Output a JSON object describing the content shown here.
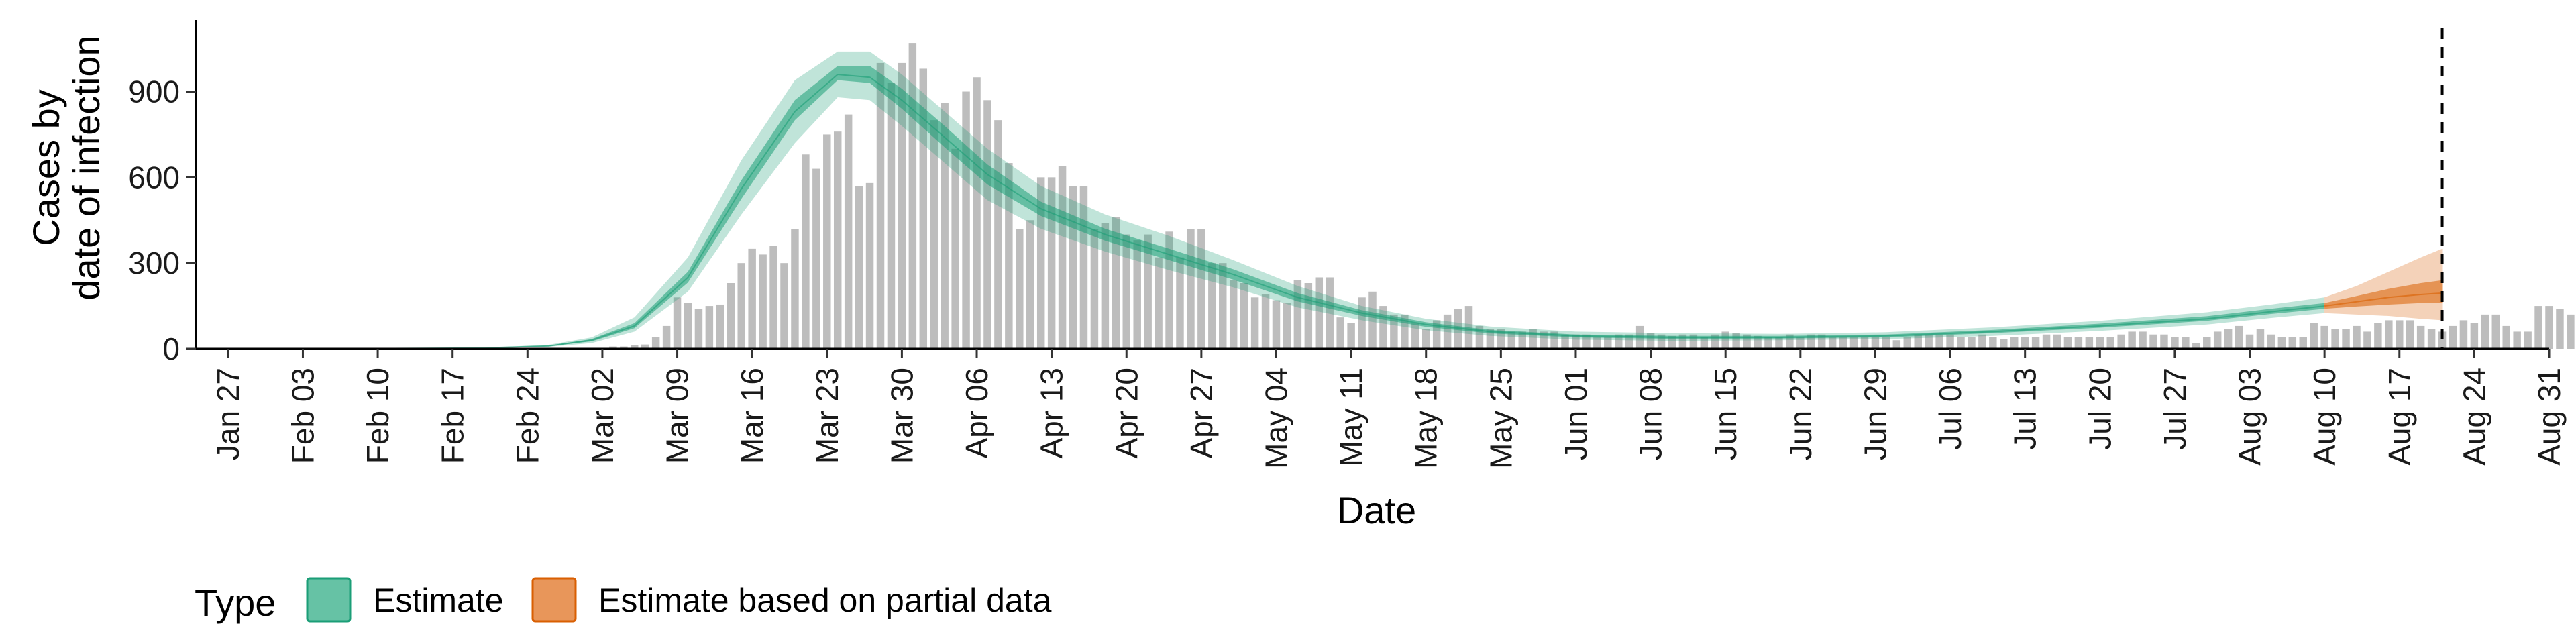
{
  "chart_data": {
    "type": "bar+area",
    "title": "",
    "xlabel": "Date",
    "ylabel_lines": [
      "Cases by",
      "date of infection"
    ],
    "ylim": [
      0,
      1150
    ],
    "yticks": [
      0,
      300,
      600,
      900
    ],
    "ytick_labels": [
      "0",
      "300",
      "600",
      "900"
    ],
    "xlim": [
      "2020-01-24",
      "2020-08-31"
    ],
    "xticks": [
      "2020-01-27",
      "2020-02-03",
      "2020-02-10",
      "2020-02-17",
      "2020-02-24",
      "2020-03-02",
      "2020-03-09",
      "2020-03-16",
      "2020-03-23",
      "2020-03-30",
      "2020-04-06",
      "2020-04-13",
      "2020-04-20",
      "2020-04-27",
      "2020-05-04",
      "2020-05-11",
      "2020-05-18",
      "2020-05-25",
      "2020-06-01",
      "2020-06-08",
      "2020-06-15",
      "2020-06-22",
      "2020-06-29",
      "2020-07-06",
      "2020-07-13",
      "2020-07-20",
      "2020-07-27",
      "2020-08-03",
      "2020-08-10",
      "2020-08-17",
      "2020-08-24",
      "2020-08-31"
    ],
    "xtick_labels": [
      "Jan 27",
      "Feb 03",
      "Feb 10",
      "Feb 17",
      "Feb 24",
      "Mar 02",
      "Mar 09",
      "Mar 16",
      "Mar 23",
      "Mar 30",
      "Apr 06",
      "Apr 13",
      "Apr 20",
      "Apr 27",
      "May 04",
      "May 11",
      "May 18",
      "May 25",
      "Jun 01",
      "Jun 08",
      "Jun 15",
      "Jun 22",
      "Jun 29",
      "Jul 06",
      "Jul 13",
      "Jul 20",
      "Jul 27",
      "Aug 03",
      "Aug 10",
      "Aug 17",
      "Aug 24",
      "Aug 31"
    ],
    "vline_date": "2020-08-21",
    "bar_color": "#bdbdbd",
    "bars_start_date": "2020-03-03",
    "bars": [
      8,
      8,
      12,
      15,
      40,
      80,
      180,
      160,
      140,
      150,
      155,
      230,
      300,
      350,
      330,
      360,
      300,
      420,
      680,
      630,
      750,
      760,
      820,
      570,
      580,
      1000,
      930,
      1000,
      1070,
      980,
      800,
      860,
      700,
      900,
      950,
      870,
      800,
      650,
      420,
      450,
      600,
      600,
      640,
      570,
      570,
      420,
      440,
      460,
      400,
      380,
      400,
      320,
      410,
      320,
      420,
      420,
      300,
      300,
      240,
      230,
      180,
      190,
      170,
      160,
      240,
      230,
      250,
      250,
      110,
      90,
      180,
      200,
      150,
      120,
      120,
      90,
      70,
      100,
      120,
      140,
      150,
      80,
      70,
      70,
      60,
      60,
      70,
      60,
      60,
      50,
      50,
      50,
      40,
      40,
      50,
      50,
      80,
      55,
      50,
      45,
      50,
      50,
      40,
      50,
      60,
      55,
      50,
      45,
      40,
      40,
      50,
      40,
      50,
      50,
      40,
      40,
      40,
      40,
      40,
      40,
      30,
      40,
      50,
      50,
      50,
      50,
      40,
      40,
      50,
      40,
      35,
      40,
      40,
      40,
      50,
      50,
      40,
      40,
      40,
      40,
      40,
      50,
      60,
      60,
      50,
      50,
      40,
      40,
      20,
      40,
      60,
      70,
      80,
      50,
      70,
      50,
      40,
      40,
      40,
      90,
      80,
      70,
      70,
      80,
      60,
      90,
      100,
      100,
      100,
      80,
      70,
      60,
      80,
      100,
      90,
      120,
      120,
      80,
      60,
      60,
      150,
      150,
      140,
      120,
      120,
      100,
      80,
      70,
      170,
      160,
      140,
      120
    ],
    "series": [
      {
        "name": "Estimate",
        "color": "#1b9e77",
        "dates": [
          "2020-01-30",
          "2020-02-10",
          "2020-02-20",
          "2020-02-26",
          "2020-03-01",
          "2020-03-05",
          "2020-03-10",
          "2020-03-15",
          "2020-03-20",
          "2020-03-24",
          "2020-03-27",
          "2020-03-30",
          "2020-04-03",
          "2020-04-07",
          "2020-04-12",
          "2020-04-18",
          "2020-04-24",
          "2020-04-30",
          "2020-05-06",
          "2020-05-12",
          "2020-05-18",
          "2020-05-24",
          "2020-06-01",
          "2020-06-10",
          "2020-06-20",
          "2020-06-30",
          "2020-07-10",
          "2020-07-20",
          "2020-07-30",
          "2020-08-05",
          "2020-08-10"
        ],
        "median": [
          1,
          1,
          3,
          10,
          30,
          80,
          250,
          560,
          830,
          960,
          950,
          870,
          740,
          610,
          490,
          400,
          330,
          260,
          180,
          125,
          85,
          60,
          45,
          40,
          40,
          45,
          60,
          80,
          105,
          130,
          150
        ],
        "lower90": [
          0,
          0,
          2,
          7,
          20,
          60,
          200,
          470,
          720,
          880,
          870,
          780,
          650,
          520,
          420,
          340,
          275,
          215,
          145,
          100,
          65,
          45,
          32,
          28,
          30,
          34,
          45,
          63,
          85,
          108,
          125
        ],
        "upper90": [
          1,
          2,
          4,
          14,
          40,
          110,
          320,
          660,
          940,
          1040,
          1040,
          960,
          830,
          700,
          570,
          470,
          395,
          310,
          220,
          150,
          105,
          78,
          60,
          55,
          52,
          58,
          75,
          98,
          128,
          155,
          180
        ],
        "lower50": [
          1,
          1,
          3,
          9,
          26,
          72,
          232,
          525,
          800,
          940,
          930,
          840,
          705,
          575,
          465,
          378,
          310,
          242,
          166,
          115,
          77,
          54,
          40,
          35,
          36,
          40,
          55,
          74,
          98,
          122,
          140
        ],
        "upper50": [
          1,
          1,
          3,
          11,
          34,
          90,
          270,
          590,
          870,
          990,
          990,
          910,
          780,
          645,
          515,
          420,
          350,
          278,
          195,
          135,
          93,
          66,
          50,
          45,
          45,
          50,
          66,
          88,
          114,
          140,
          160
        ]
      },
      {
        "name": "Estimate based on partial data",
        "color": "#d95f02",
        "dates": [
          "2020-08-10",
          "2020-08-13",
          "2020-08-16",
          "2020-08-19",
          "2020-08-21"
        ],
        "median": [
          150,
          165,
          180,
          190,
          195
        ],
        "lower90": [
          125,
          120,
          115,
          105,
          100
        ],
        "upper90": [
          180,
          220,
          270,
          320,
          350
        ],
        "lower50": [
          140,
          148,
          155,
          160,
          162
        ],
        "upper50": [
          160,
          185,
          210,
          230,
          240
        ]
      }
    ],
    "legend": {
      "title": "Type",
      "placement": "bottom-left",
      "items": [
        {
          "label": "Estimate",
          "color": "#66c2a5",
          "border": "#1b9e77"
        },
        {
          "label": "Estimate based on partial data",
          "color": "#e8965a",
          "border": "#d95f02"
        }
      ]
    },
    "grid": false
  }
}
